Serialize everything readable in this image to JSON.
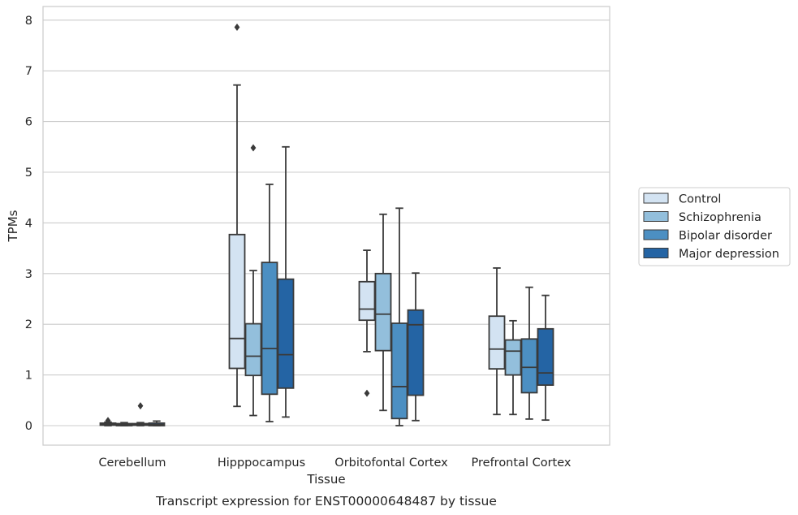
{
  "caption": "Transcript expression for ENST00000648487 by tissue",
  "colors": {
    "Control": "#d3e3f2",
    "Schizophrenia": "#93bfdc",
    "Bipolar disorder": "#4c8fc2",
    "Major depression": "#2464a4",
    "line": "#3a3a3a",
    "grid": "#cccccc"
  },
  "chart_data": {
    "type": "box",
    "xlabel": "Tissue",
    "ylabel": "TPMs",
    "ylim": [
      -0.4,
      8.25
    ],
    "yticks": [
      0,
      1,
      2,
      3,
      4,
      5,
      6,
      7,
      8
    ],
    "grid": "horizontal",
    "legend_position": "right",
    "categories": [
      "Cerebellum",
      "Hipppocampus",
      "Orbitofontal Cortex",
      "Prefrontal Cortex"
    ],
    "series": [
      {
        "name": "Control",
        "boxes": [
          {
            "whislo": 0.0,
            "q1": 0.01,
            "med": 0.03,
            "q3": 0.05,
            "whishi": 0.07,
            "fliers": [
              0.1,
              0.06
            ]
          },
          {
            "whislo": 0.38,
            "q1": 1.13,
            "med": 1.72,
            "q3": 3.77,
            "whishi": 6.72,
            "fliers": [
              7.86
            ]
          },
          {
            "whislo": 1.46,
            "q1": 2.08,
            "med": 2.3,
            "q3": 2.84,
            "whishi": 3.46,
            "fliers": [
              0.64
            ]
          },
          {
            "whislo": 0.22,
            "q1": 1.12,
            "med": 1.51,
            "q3": 2.16,
            "whishi": 3.11,
            "fliers": []
          }
        ]
      },
      {
        "name": "Schizophrenia",
        "boxes": [
          {
            "whislo": 0.0,
            "q1": 0.0,
            "med": 0.02,
            "q3": 0.04,
            "whishi": 0.06,
            "fliers": []
          },
          {
            "whislo": 0.2,
            "q1": 0.99,
            "med": 1.37,
            "q3": 2.01,
            "whishi": 3.06,
            "fliers": [
              5.48
            ]
          },
          {
            "whislo": 0.3,
            "q1": 1.48,
            "med": 2.2,
            "q3": 3.0,
            "whishi": 4.17,
            "fliers": []
          },
          {
            "whislo": 0.22,
            "q1": 1.0,
            "med": 1.47,
            "q3": 1.69,
            "whishi": 2.07,
            "fliers": []
          }
        ]
      },
      {
        "name": "Bipolar disorder",
        "boxes": [
          {
            "whislo": 0.0,
            "q1": 0.01,
            "med": 0.02,
            "q3": 0.04,
            "whishi": 0.06,
            "fliers": [
              0.39
            ]
          },
          {
            "whislo": 0.08,
            "q1": 0.62,
            "med": 1.52,
            "q3": 3.22,
            "whishi": 4.76,
            "fliers": []
          },
          {
            "whislo": 0.0,
            "q1": 0.14,
            "med": 0.77,
            "q3": 2.02,
            "whishi": 4.29,
            "fliers": []
          },
          {
            "whislo": 0.13,
            "q1": 0.65,
            "med": 1.15,
            "q3": 1.71,
            "whishi": 2.73,
            "fliers": []
          }
        ]
      },
      {
        "name": "Major depression",
        "boxes": [
          {
            "whislo": 0.0,
            "q1": 0.0,
            "med": 0.02,
            "q3": 0.05,
            "whishi": 0.09,
            "fliers": []
          },
          {
            "whislo": 0.17,
            "q1": 0.74,
            "med": 1.4,
            "q3": 2.89,
            "whishi": 5.5,
            "fliers": []
          },
          {
            "whislo": 0.1,
            "q1": 0.6,
            "med": 1.99,
            "q3": 2.28,
            "whishi": 3.01,
            "fliers": []
          },
          {
            "whislo": 0.11,
            "q1": 0.8,
            "med": 1.04,
            "q3": 1.91,
            "whishi": 2.57,
            "fliers": []
          }
        ]
      }
    ]
  }
}
